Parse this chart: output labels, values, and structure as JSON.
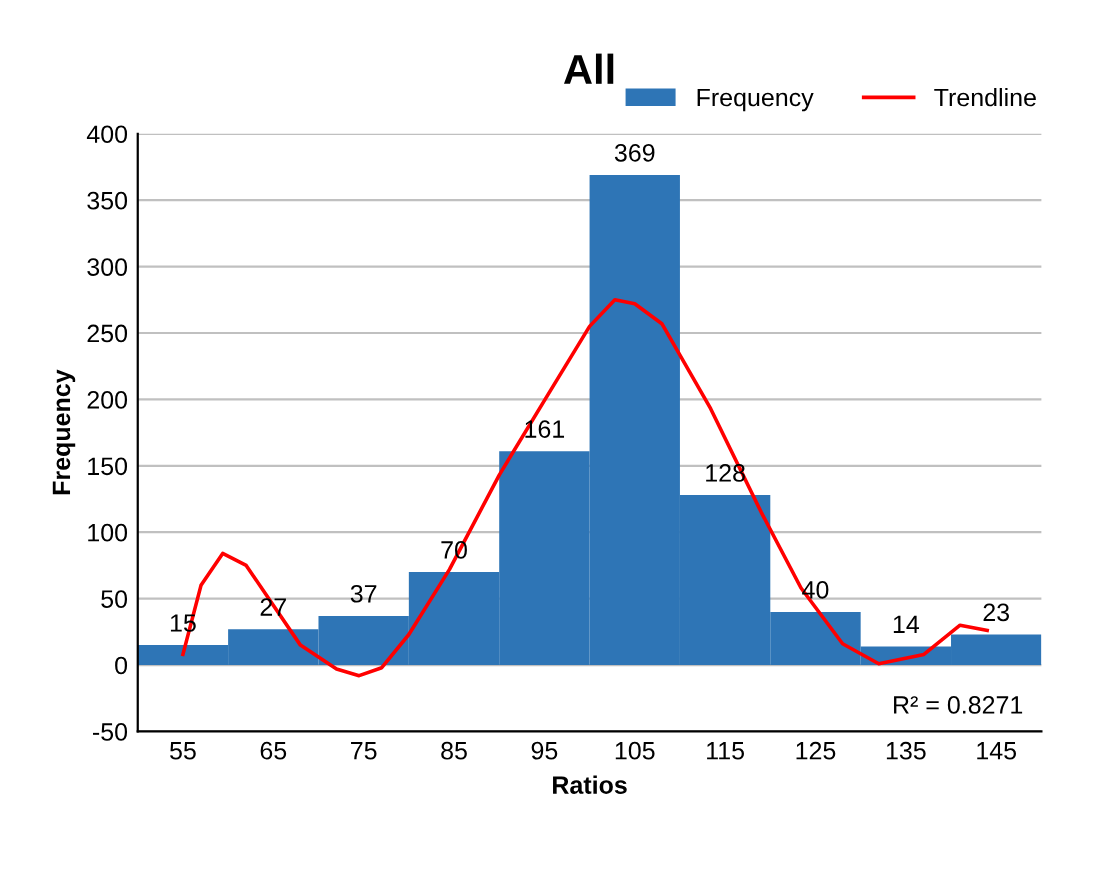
{
  "chart_data": {
    "type": "bar",
    "title": "All",
    "xlabel": "Ratios",
    "ylabel": "Frequency",
    "x": [
      55,
      65,
      75,
      85,
      95,
      105,
      115,
      125,
      135,
      145
    ],
    "series": [
      {
        "name": "Frequency",
        "color": "#2e75b6",
        "values": [
          15,
          27,
          37,
          70,
          161,
          369,
          128,
          40,
          14,
          23
        ],
        "value_labels": [
          "15",
          "27",
          "37",
          "70",
          "161",
          "369",
          "128",
          "40",
          "14",
          "23"
        ]
      },
      {
        "name": "Trendline",
        "type": "line",
        "color": "#ff0000",
        "x": [
          55,
          57,
          59.4,
          62,
          65,
          68,
          72,
          74.5,
          77,
          80,
          84.5,
          90,
          95.7,
          100,
          102.8,
          105,
          108,
          113.4,
          119,
          123.4,
          128,
          132,
          137,
          141,
          144
        ],
        "values": [
          8,
          60,
          84,
          75,
          45,
          15,
          -3,
          -8,
          -2,
          23,
          72,
          143,
          207,
          255,
          275,
          272,
          257,
          193,
          115,
          58,
          16,
          1,
          8,
          30,
          26
        ]
      }
    ],
    "xlim": [
      50,
      150
    ],
    "xticks": [
      55,
      65,
      75,
      85,
      95,
      105,
      115,
      125,
      135,
      145
    ],
    "ylim": [
      -50,
      400
    ],
    "yticks": [
      -50,
      0,
      50,
      100,
      150,
      200,
      250,
      300,
      350,
      400
    ],
    "grid": "y",
    "legend": "top right",
    "marker": "none",
    "line_style": "solid",
    "annotations": [
      "R² = 0.8271"
    ]
  }
}
